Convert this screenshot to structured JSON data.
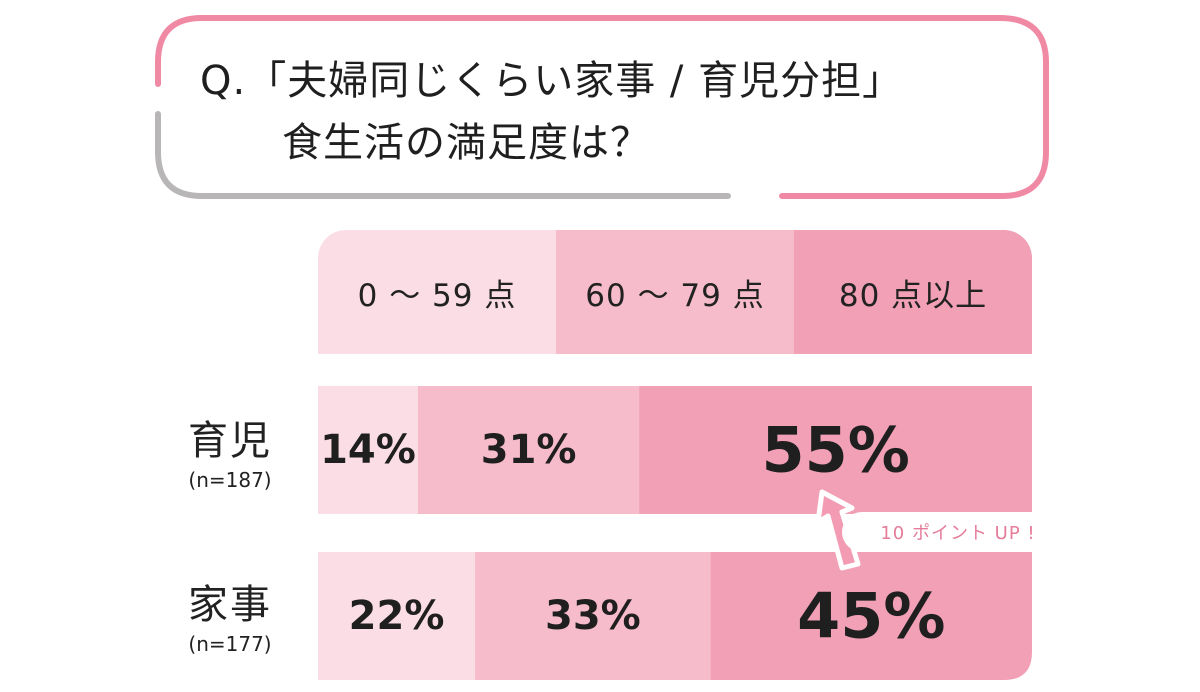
{
  "question": {
    "line1": "Q.「夫婦同じくらい家事 / 育児分担」",
    "line2": "食生活の満足度は？"
  },
  "colors": {
    "bubble_border_pink": "#f08aa4",
    "bubble_border_gray": "#b9b6b8",
    "band_light": "#fbdde5",
    "band_mid": "#f7bccb",
    "band_dark": "#f1a0b6",
    "callout_arrow": "#f29bb3",
    "callout_text": "#e57c9a"
  },
  "callout_label": "10 ポイント UP !",
  "chart_data": {
    "type": "bar",
    "orientation": "horizontal",
    "stacked": true,
    "percent": true,
    "categories": [
      "0 〜 59 点",
      "60 〜 79 点",
      "80 点以上"
    ],
    "rows": [
      {
        "label": "育児",
        "n": "(n=187)",
        "values": [
          14,
          31,
          55
        ],
        "labels": [
          "14%",
          "31%",
          "55%"
        ]
      },
      {
        "label": "家事",
        "n": "(n=177)",
        "values": [
          22,
          33,
          45
        ],
        "labels": [
          "22%",
          "33%",
          "45%"
        ]
      }
    ],
    "xlim": [
      0,
      100
    ],
    "legend": "top (header row)"
  }
}
